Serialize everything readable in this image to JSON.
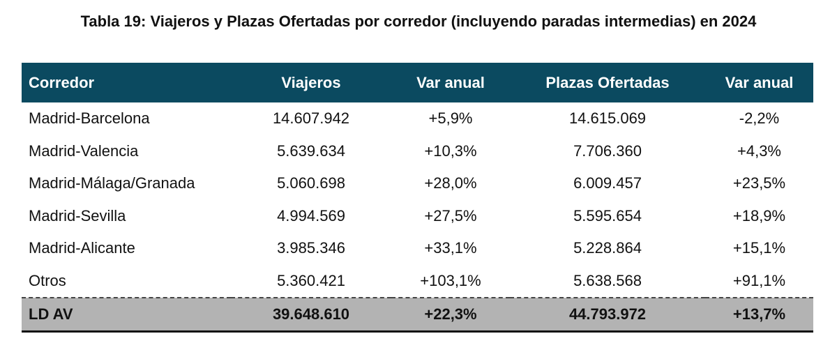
{
  "title": "Tabla 19: Viajeros y Plazas Ofertadas por corredor (incluyendo paradas intermedias) en 2024",
  "columns": [
    "Corredor",
    "Viajeros",
    "Var anual",
    "Plazas Ofertadas",
    "Var anual"
  ],
  "rows": [
    [
      "Madrid-Barcelona",
      "14.607.942",
      "+5,9%",
      "14.615.069",
      "-2,2%"
    ],
    [
      "Madrid-Valencia",
      "5.639.634",
      "+10,3%",
      "7.706.360",
      "+4,3%"
    ],
    [
      "Madrid-Málaga/Granada",
      "5.060.698",
      "+28,0%",
      "6.009.457",
      "+23,5%"
    ],
    [
      "Madrid-Sevilla",
      "4.994.569",
      "+27,5%",
      "5.595.654",
      "+18,9%"
    ],
    [
      "Madrid-Alicante",
      "3.985.346",
      "+33,1%",
      "5.228.864",
      "+15,1%"
    ],
    [
      "Otros",
      "5.360.421",
      "+103,1%",
      "5.638.568",
      "+91,1%"
    ]
  ],
  "total": [
    "LD AV",
    "39.648.610",
    "+22,3%",
    "44.793.972",
    "+13,7%"
  ],
  "colors": {
    "header_bg": "#0b4a60",
    "total_bg": "#b3b3b3"
  }
}
